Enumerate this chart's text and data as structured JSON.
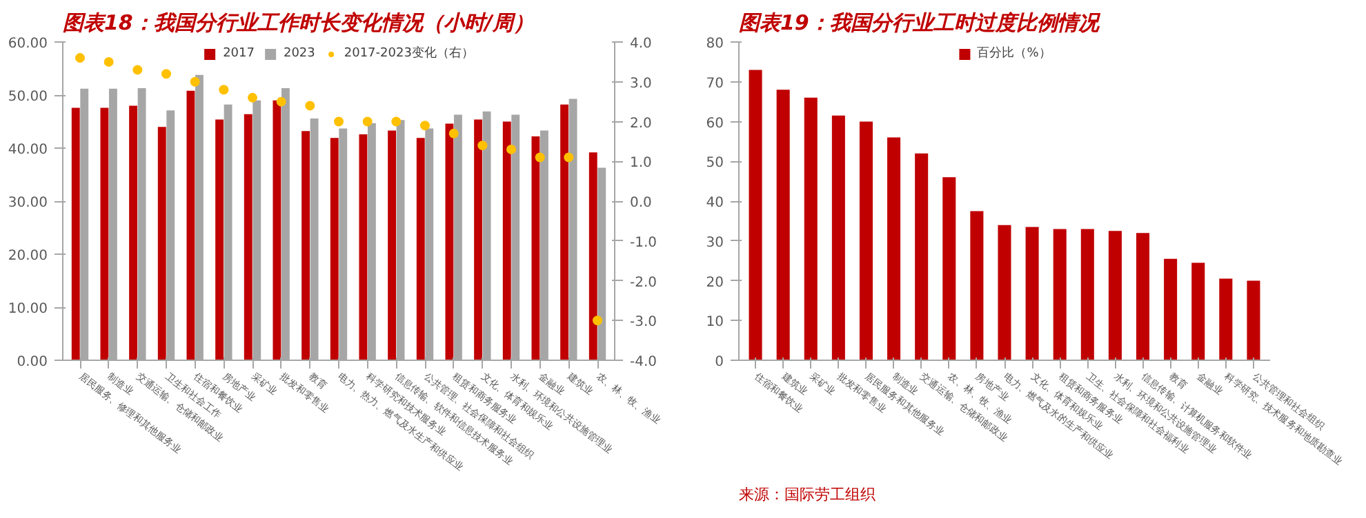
{
  "chart_data": [
    {
      "type": "bar",
      "title": "图表18：我国分行业工作时长变化情况（小时/周）",
      "categories": [
        "居民服务、修理和其他服务业",
        "制造业",
        "交通运输、仓储和邮政业",
        "卫生和社会工作",
        "住宿和餐饮业",
        "房地产业",
        "采矿业",
        "批发和零售业",
        "教育",
        "电力、热力、燃气及水生产和供应业",
        "科学研究和技术服务业",
        "信息传输、软件和信息技术服务业",
        "公共管理、社会保障和社会组织",
        "租赁和商务服务业",
        "文化、体育和娱乐业",
        "水利、环境和公共设施管理业",
        "金融业",
        "建筑业",
        "农、林、牧、渔业"
      ],
      "series": [
        {
          "name": "2017",
          "type": "bar",
          "color": "#c00000",
          "values": [
            47.6,
            47.6,
            48.0,
            44.0,
            50.8,
            45.4,
            46.4,
            49.0,
            43.2,
            41.9,
            42.6,
            43.3,
            41.9,
            44.6,
            45.4,
            45.0,
            42.2,
            48.2,
            39.2
          ]
        },
        {
          "name": "2023",
          "type": "bar",
          "color": "#a6a6a6",
          "values": [
            51.2,
            51.2,
            51.3,
            47.1,
            53.8,
            48.2,
            49.0,
            51.3,
            45.6,
            43.7,
            44.7,
            45.3,
            43.7,
            46.3,
            46.9,
            46.3,
            43.3,
            49.3,
            36.3
          ]
        },
        {
          "name": "2017-2023变化（右）",
          "type": "scatter",
          "axis": "y2",
          "color": "#ffc000",
          "values": [
            3.6,
            3.5,
            3.3,
            3.2,
            3.0,
            2.8,
            2.6,
            2.5,
            2.4,
            2.0,
            2.0,
            2.0,
            1.9,
            1.7,
            1.4,
            1.3,
            1.1,
            1.1,
            -3.0
          ]
        }
      ],
      "ylim": [
        0,
        60
      ],
      "yticks": [
        {
          "value": 0,
          "label": "0.00"
        },
        {
          "value": 10,
          "label": "10.00"
        },
        {
          "value": 20,
          "label": "20.00"
        },
        {
          "value": 30,
          "label": "30.00"
        },
        {
          "value": 40,
          "label": "40.00"
        },
        {
          "value": 50,
          "label": "50.00"
        },
        {
          "value": 60,
          "label": "60.00"
        }
      ],
      "y2lim": [
        -4,
        4
      ],
      "y2ticks": [
        {
          "value": -4,
          "label": "-4.0"
        },
        {
          "value": -3,
          "label": "-3.0"
        },
        {
          "value": -2,
          "label": "-2.0"
        },
        {
          "value": -1,
          "label": "-1.0"
        },
        {
          "value": 0,
          "label": "0.0"
        },
        {
          "value": 1,
          "label": "1.0"
        },
        {
          "value": 2,
          "label": "2.0"
        },
        {
          "value": 3,
          "label": "3.0"
        },
        {
          "value": 4,
          "label": "4.0"
        }
      ],
      "legend": "top",
      "marker": "circle",
      "grid": false
    },
    {
      "type": "bar",
      "title": "图表19：我国分行业工时过度比例情况",
      "categories": [
        "住宿和餐饮业",
        "建筑业",
        "采矿业",
        "批发和零售业",
        "居民服务和其他服务业",
        "制造业",
        "交通运输、仓储和邮政业",
        "农、林、牧、渔业",
        "房地产业",
        "电力、燃气及水的生产和供应业",
        "文化、体育和娱乐业",
        "租赁和商务服务业",
        "卫生、社会保障和社会福利业",
        "水利、环境和公共设施管理业",
        "信息传输、计算机服务和软件业",
        "教育",
        "金融业",
        "科学研究、技术服务和地质勘查业",
        "公共管理和社会组织"
      ],
      "series": [
        {
          "name": "百分比（%）",
          "color": "#c00000",
          "values": [
            73,
            68,
            66,
            61.5,
            60,
            56,
            52,
            46,
            37.5,
            34,
            33.5,
            33,
            33,
            32.5,
            32,
            25.5,
            24.5,
            20.5,
            20
          ]
        }
      ],
      "ylim": [
        0,
        80
      ],
      "yticks": [
        0,
        10,
        20,
        30,
        40,
        50,
        60,
        70,
        80
      ],
      "legend": "top",
      "grid": false,
      "annotations": [
        "来源：国际劳工组织"
      ]
    }
  ]
}
